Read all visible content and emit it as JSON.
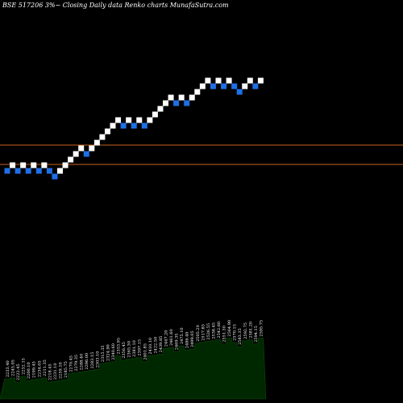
{
  "title": "BSE 517206  3%~  Closing Daily data  Renko  charts MunafaSutra.com",
  "colors": {
    "background": "#000000",
    "up_brick": "#ffffff",
    "down_brick": "#1e6fe6",
    "reference_line": "#c8641e",
    "volume_fill": "#002800",
    "label_text": "#ffffff"
  },
  "chart_data": {
    "type": "renko",
    "brick_directions": [
      "down",
      "up",
      "down",
      "up",
      "down",
      "up",
      "down",
      "up",
      "down",
      "down",
      "up",
      "up",
      "up",
      "up",
      "up",
      "down",
      "up",
      "up",
      "up",
      "up",
      "up",
      "up",
      "down",
      "up",
      "down",
      "up",
      "down",
      "up",
      "up",
      "up",
      "up",
      "up",
      "down",
      "up",
      "down",
      "up",
      "up",
      "up",
      "up",
      "down",
      "up",
      "down",
      "up",
      "down",
      "down",
      "up",
      "up",
      "down",
      "up"
    ],
    "reference_lines": [
      "upper",
      "lower"
    ],
    "volume_labels": [
      "2233.40",
      "2245.05",
      "2222.45",
      "2232.15",
      "2200.10",
      "2199.45",
      "2234.05",
      "2211.35",
      "2218.45",
      "2231.10",
      "2259.10",
      "2185.75",
      "2270.45",
      "2279.35",
      "2288.40",
      "2296.00",
      "2283.15",
      "2303.10",
      "2315.35",
      "2324.90",
      "2340.60",
      "2353.95",
      "2356.45",
      "2365.30",
      "2381.10",
      "2397.15",
      "2401.85",
      "2410.10",
      "2422.50",
      "2439.85",
      "2447.20",
      "2461.60",
      "2469.35",
      "2475.10",
      "2486.40",
      "2499.05",
      "2505.20",
      "2517.85",
      "2526.55",
      "2538.45",
      "2542.60",
      "2551.30",
      "2564.90",
      "2570.15",
      "2583.35",
      "2592.75",
      "2581.20",
      "2594.15",
      "2595.75"
    ]
  }
}
